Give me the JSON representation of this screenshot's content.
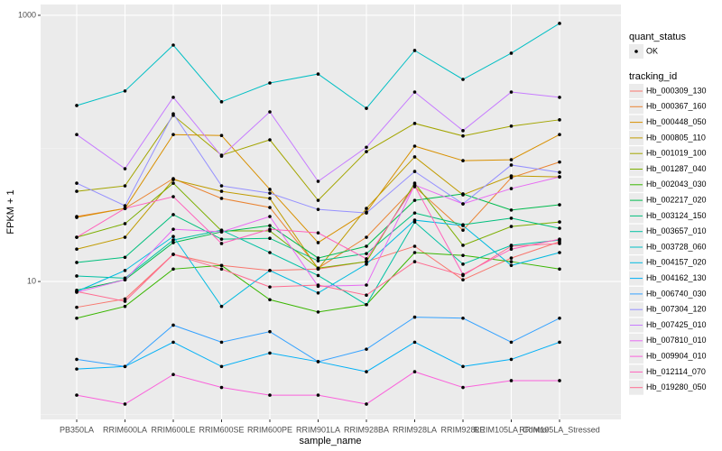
{
  "chart_data": {
    "type": "line",
    "log_y": true,
    "grid": true,
    "x_label": "sample_name",
    "y_label": "FPKM + 1",
    "categories": [
      "PB350LA",
      "RRIM600LA",
      "RRIM600LE",
      "RRIM600SE",
      "RRIM600PE",
      "RRIM901LA",
      "RRIM928BA",
      "RRIM928LA",
      "RRIM928LE",
      "RRIM105LA_Control",
      "RRIM105LA_Stressed"
    ],
    "ylim": [
      0.92,
      1205
    ],
    "yticks": [
      10,
      1000
    ],
    "shape_legend": {
      "title": "quant_status",
      "labels": [
        "OK"
      ]
    },
    "legend_title": "tracking_id",
    "series": [
      {
        "name": "Hb_000309_130",
        "color": "#F8766D",
        "values": [
          6.4,
          7.4,
          16.0,
          13.2,
          12.1,
          12.4,
          14.1,
          18.4,
          10.3,
          15.0,
          19.9
        ]
      },
      {
        "name": "Hb_000367_160",
        "color": "#EA8331",
        "values": [
          30.8,
          35.4,
          59.3,
          42.1,
          36.0,
          12.6,
          21.5,
          51.5,
          24.3,
          60.2,
          79.0
        ]
      },
      {
        "name": "Hb_000448_050",
        "color": "#D89000",
        "values": [
          30.3,
          35.4,
          127,
          125,
          49.2,
          19.6,
          33.3,
          104,
          80.9,
          82.2,
          127
        ]
      },
      {
        "name": "Hb_000805_110",
        "color": "#C09B00",
        "values": [
          17.5,
          21.5,
          58.3,
          47.6,
          42.1,
          12.4,
          35.4,
          86.3,
          44.8,
          62.1,
          61.1
        ]
      },
      {
        "name": "Hb_001019_100",
        "color": "#A3A500",
        "values": [
          47.6,
          52.3,
          177,
          88.9,
          116,
          40.7,
          94.6,
          154,
          124,
          147,
          164
        ]
      },
      {
        "name": "Hb_001287_040",
        "color": "#7CAE00",
        "values": [
          21.5,
          27.2,
          54.8,
          24.0,
          24.0,
          12.6,
          14.1,
          54.8,
          18.7,
          25.9,
          28.0
        ]
      },
      {
        "name": "Hb_002043_030",
        "color": "#39B600",
        "values": [
          5.3,
          6.5,
          12.4,
          13.2,
          7.3,
          5.9,
          6.7,
          16.5,
          15.7,
          14.1,
          12.4
        ]
      },
      {
        "name": "Hb_002217_020",
        "color": "#00BB4E",
        "values": [
          8.6,
          10.3,
          19.6,
          23.6,
          26.3,
          15.0,
          18.4,
          40.7,
          45.5,
          34.4,
          37.7
        ]
      },
      {
        "name": "Hb_003124_150",
        "color": "#00BF7D",
        "values": [
          13.9,
          15.2,
          31.8,
          20.8,
          21.1,
          14.3,
          16.2,
          32.7,
          26.7,
          29.9,
          25.1
        ]
      },
      {
        "name": "Hb_003657_010",
        "color": "#00C1A3",
        "values": [
          11.0,
          10.6,
          20.5,
          24.3,
          16.5,
          11.1,
          6.7,
          28.0,
          13.5,
          18.7,
          20.5
        ]
      },
      {
        "name": "Hb_003728_060",
        "color": "#00BFC4",
        "values": [
          210,
          270,
          597,
          224,
          310,
          362,
          200,
          544,
          330,
          519,
          869
        ]
      },
      {
        "name": "Hb_004157_020",
        "color": "#00BAE0",
        "values": [
          8.4,
          12.1,
          21.8,
          6.5,
          12.1,
          8.2,
          13.5,
          28.9,
          26.3,
          13.2,
          16.5
        ]
      },
      {
        "name": "Hb_004162_130",
        "color": "#00B0F6",
        "values": [
          2.2,
          2.3,
          3.5,
          2.3,
          2.9,
          2.5,
          2.1,
          3.5,
          2.3,
          2.6,
          3.5
        ]
      },
      {
        "name": "Hb_006740_030",
        "color": "#35A2FF",
        "values": [
          2.6,
          2.3,
          4.7,
          3.5,
          4.2,
          2.5,
          3.1,
          5.4,
          5.3,
          3.5,
          5.3
        ]
      },
      {
        "name": "Hb_007304_120",
        "color": "#9590FF",
        "values": [
          54.8,
          37.1,
          182,
          52.3,
          46.1,
          34.8,
          32.7,
          67.1,
          38.3,
          75.0,
          66.1
        ]
      },
      {
        "name": "Hb_007425_010",
        "color": "#C77CFF",
        "values": [
          127,
          70.4,
          242,
          87.5,
          188,
          56.6,
          102,
          265,
          136,
          265,
          242
        ]
      },
      {
        "name": "Hb_007810_010",
        "color": "#E76BF3",
        "values": [
          8.3,
          10.3,
          24.7,
          23.6,
          30.8,
          9.2,
          9.4,
          53.1,
          38.3,
          49.9,
          61.1
        ]
      },
      {
        "name": "Hb_009904_010",
        "color": "#FA62DB",
        "values": [
          1.4,
          1.2,
          2.0,
          1.6,
          1.4,
          1.4,
          1.2,
          2.1,
          1.6,
          1.8,
          1.8
        ]
      },
      {
        "name": "Hb_012114_070",
        "color": "#FF62BC",
        "values": [
          21.5,
          35.4,
          43.4,
          19.3,
          24.7,
          23.2,
          14.8,
          52.3,
          11.3,
          17.5,
          20.8
        ]
      },
      {
        "name": "Hb_019280_050",
        "color": "#FF6C91",
        "values": [
          8.4,
          7.1,
          16.0,
          12.4,
          9.1,
          9.4,
          7.9,
          14.1,
          11.1,
          18.4,
          19.3
        ]
      }
    ]
  }
}
